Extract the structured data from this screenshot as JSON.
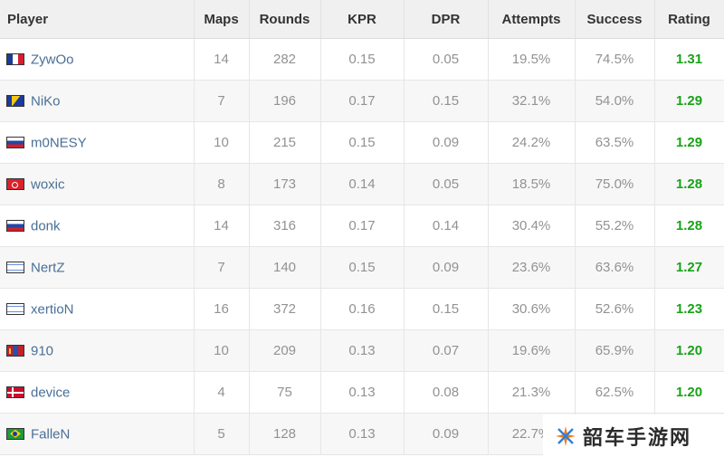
{
  "table": {
    "headers": {
      "player": "Player",
      "maps": "Maps",
      "rounds": "Rounds",
      "kpr": "KPR",
      "dpr": "DPR",
      "attempts": "Attempts",
      "success": "Success",
      "rating": "Rating"
    },
    "rows": [
      {
        "player": "ZywOo",
        "flag": "fr",
        "maps": "14",
        "rounds": "282",
        "kpr": "0.15",
        "dpr": "0.05",
        "attempts": "19.5%",
        "success": "74.5%",
        "rating": "1.31"
      },
      {
        "player": "NiKo",
        "flag": "ba",
        "maps": "7",
        "rounds": "196",
        "kpr": "0.17",
        "dpr": "0.15",
        "attempts": "32.1%",
        "success": "54.0%",
        "rating": "1.29"
      },
      {
        "player": "m0NESY",
        "flag": "ru",
        "maps": "10",
        "rounds": "215",
        "kpr": "0.15",
        "dpr": "0.09",
        "attempts": "24.2%",
        "success": "63.5%",
        "rating": "1.29"
      },
      {
        "player": "woxic",
        "flag": "tr",
        "maps": "8",
        "rounds": "173",
        "kpr": "0.14",
        "dpr": "0.05",
        "attempts": "18.5%",
        "success": "75.0%",
        "rating": "1.28"
      },
      {
        "player": "donk",
        "flag": "ru",
        "maps": "14",
        "rounds": "316",
        "kpr": "0.17",
        "dpr": "0.14",
        "attempts": "30.4%",
        "success": "55.2%",
        "rating": "1.28"
      },
      {
        "player": "NertZ",
        "flag": "il",
        "maps": "7",
        "rounds": "140",
        "kpr": "0.15",
        "dpr": "0.09",
        "attempts": "23.6%",
        "success": "63.6%",
        "rating": "1.27"
      },
      {
        "player": "xertioN",
        "flag": "il",
        "maps": "16",
        "rounds": "372",
        "kpr": "0.16",
        "dpr": "0.15",
        "attempts": "30.6%",
        "success": "52.6%",
        "rating": "1.23"
      },
      {
        "player": "910",
        "flag": "mn",
        "maps": "10",
        "rounds": "209",
        "kpr": "0.13",
        "dpr": "0.07",
        "attempts": "19.6%",
        "success": "65.9%",
        "rating": "1.20"
      },
      {
        "player": "device",
        "flag": "dk",
        "maps": "4",
        "rounds": "75",
        "kpr": "0.13",
        "dpr": "0.08",
        "attempts": "21.3%",
        "success": "62.5%",
        "rating": "1.20"
      },
      {
        "player": "FalleN",
        "flag": "br",
        "maps": "5",
        "rounds": "128",
        "kpr": "0.13",
        "dpr": "0.09",
        "attempts": "22.7%",
        "success": "",
        "rating": ""
      }
    ]
  },
  "watermark": {
    "text": "韶车手游网",
    "icon": "star-logo-icon"
  },
  "colors": {
    "header_bg": "#f0f0f0",
    "player_link": "#4a6f96",
    "rating_green": "#17a317",
    "cell_text": "#929292"
  }
}
